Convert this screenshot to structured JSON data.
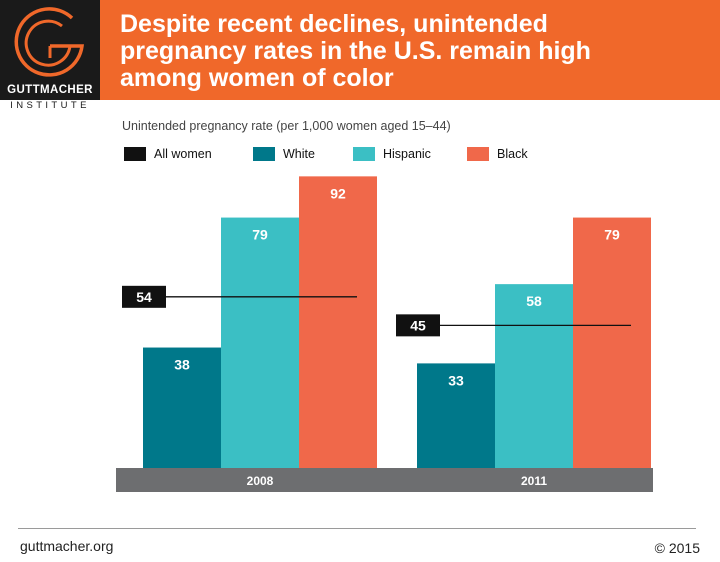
{
  "header": {
    "title_lines": [
      "Despite recent declines, unintended",
      "pregnancy rates in the U.S. remain high",
      "among women of color"
    ],
    "logo_name": "GUTTMACHER",
    "logo_sub": "INSTITUTE",
    "bg_color": "#f0682a"
  },
  "chart_data": {
    "type": "bar",
    "title": "Despite recent declines, unintended pregnancy rates in the U.S. remain high among women of color",
    "ylabel": "Unintended pregnancy rate (per 1,000 women aged 15–44)",
    "categories": [
      "2008",
      "2011"
    ],
    "series": [
      {
        "name": "White",
        "color": "#00788a",
        "values": [
          38,
          33
        ]
      },
      {
        "name": "Hispanic",
        "color": "#3bbfc4",
        "values": [
          79,
          58
        ]
      },
      {
        "name": "Black",
        "color": "#f0684a",
        "values": [
          92,
          79
        ]
      }
    ],
    "reference": {
      "name": "All women",
      "color": "#111111",
      "values": [
        54,
        45
      ]
    },
    "ylim": [
      0,
      100
    ],
    "legend": "top",
    "grid": false
  },
  "legend": [
    {
      "label": "All women",
      "color": "#111111"
    },
    {
      "label": "White",
      "color": "#00788a"
    },
    {
      "label": "Hispanic",
      "color": "#3bbfc4"
    },
    {
      "label": "Black",
      "color": "#f0684a"
    }
  ],
  "footer": {
    "left": "guttmacher.org",
    "right": "© 2015"
  }
}
